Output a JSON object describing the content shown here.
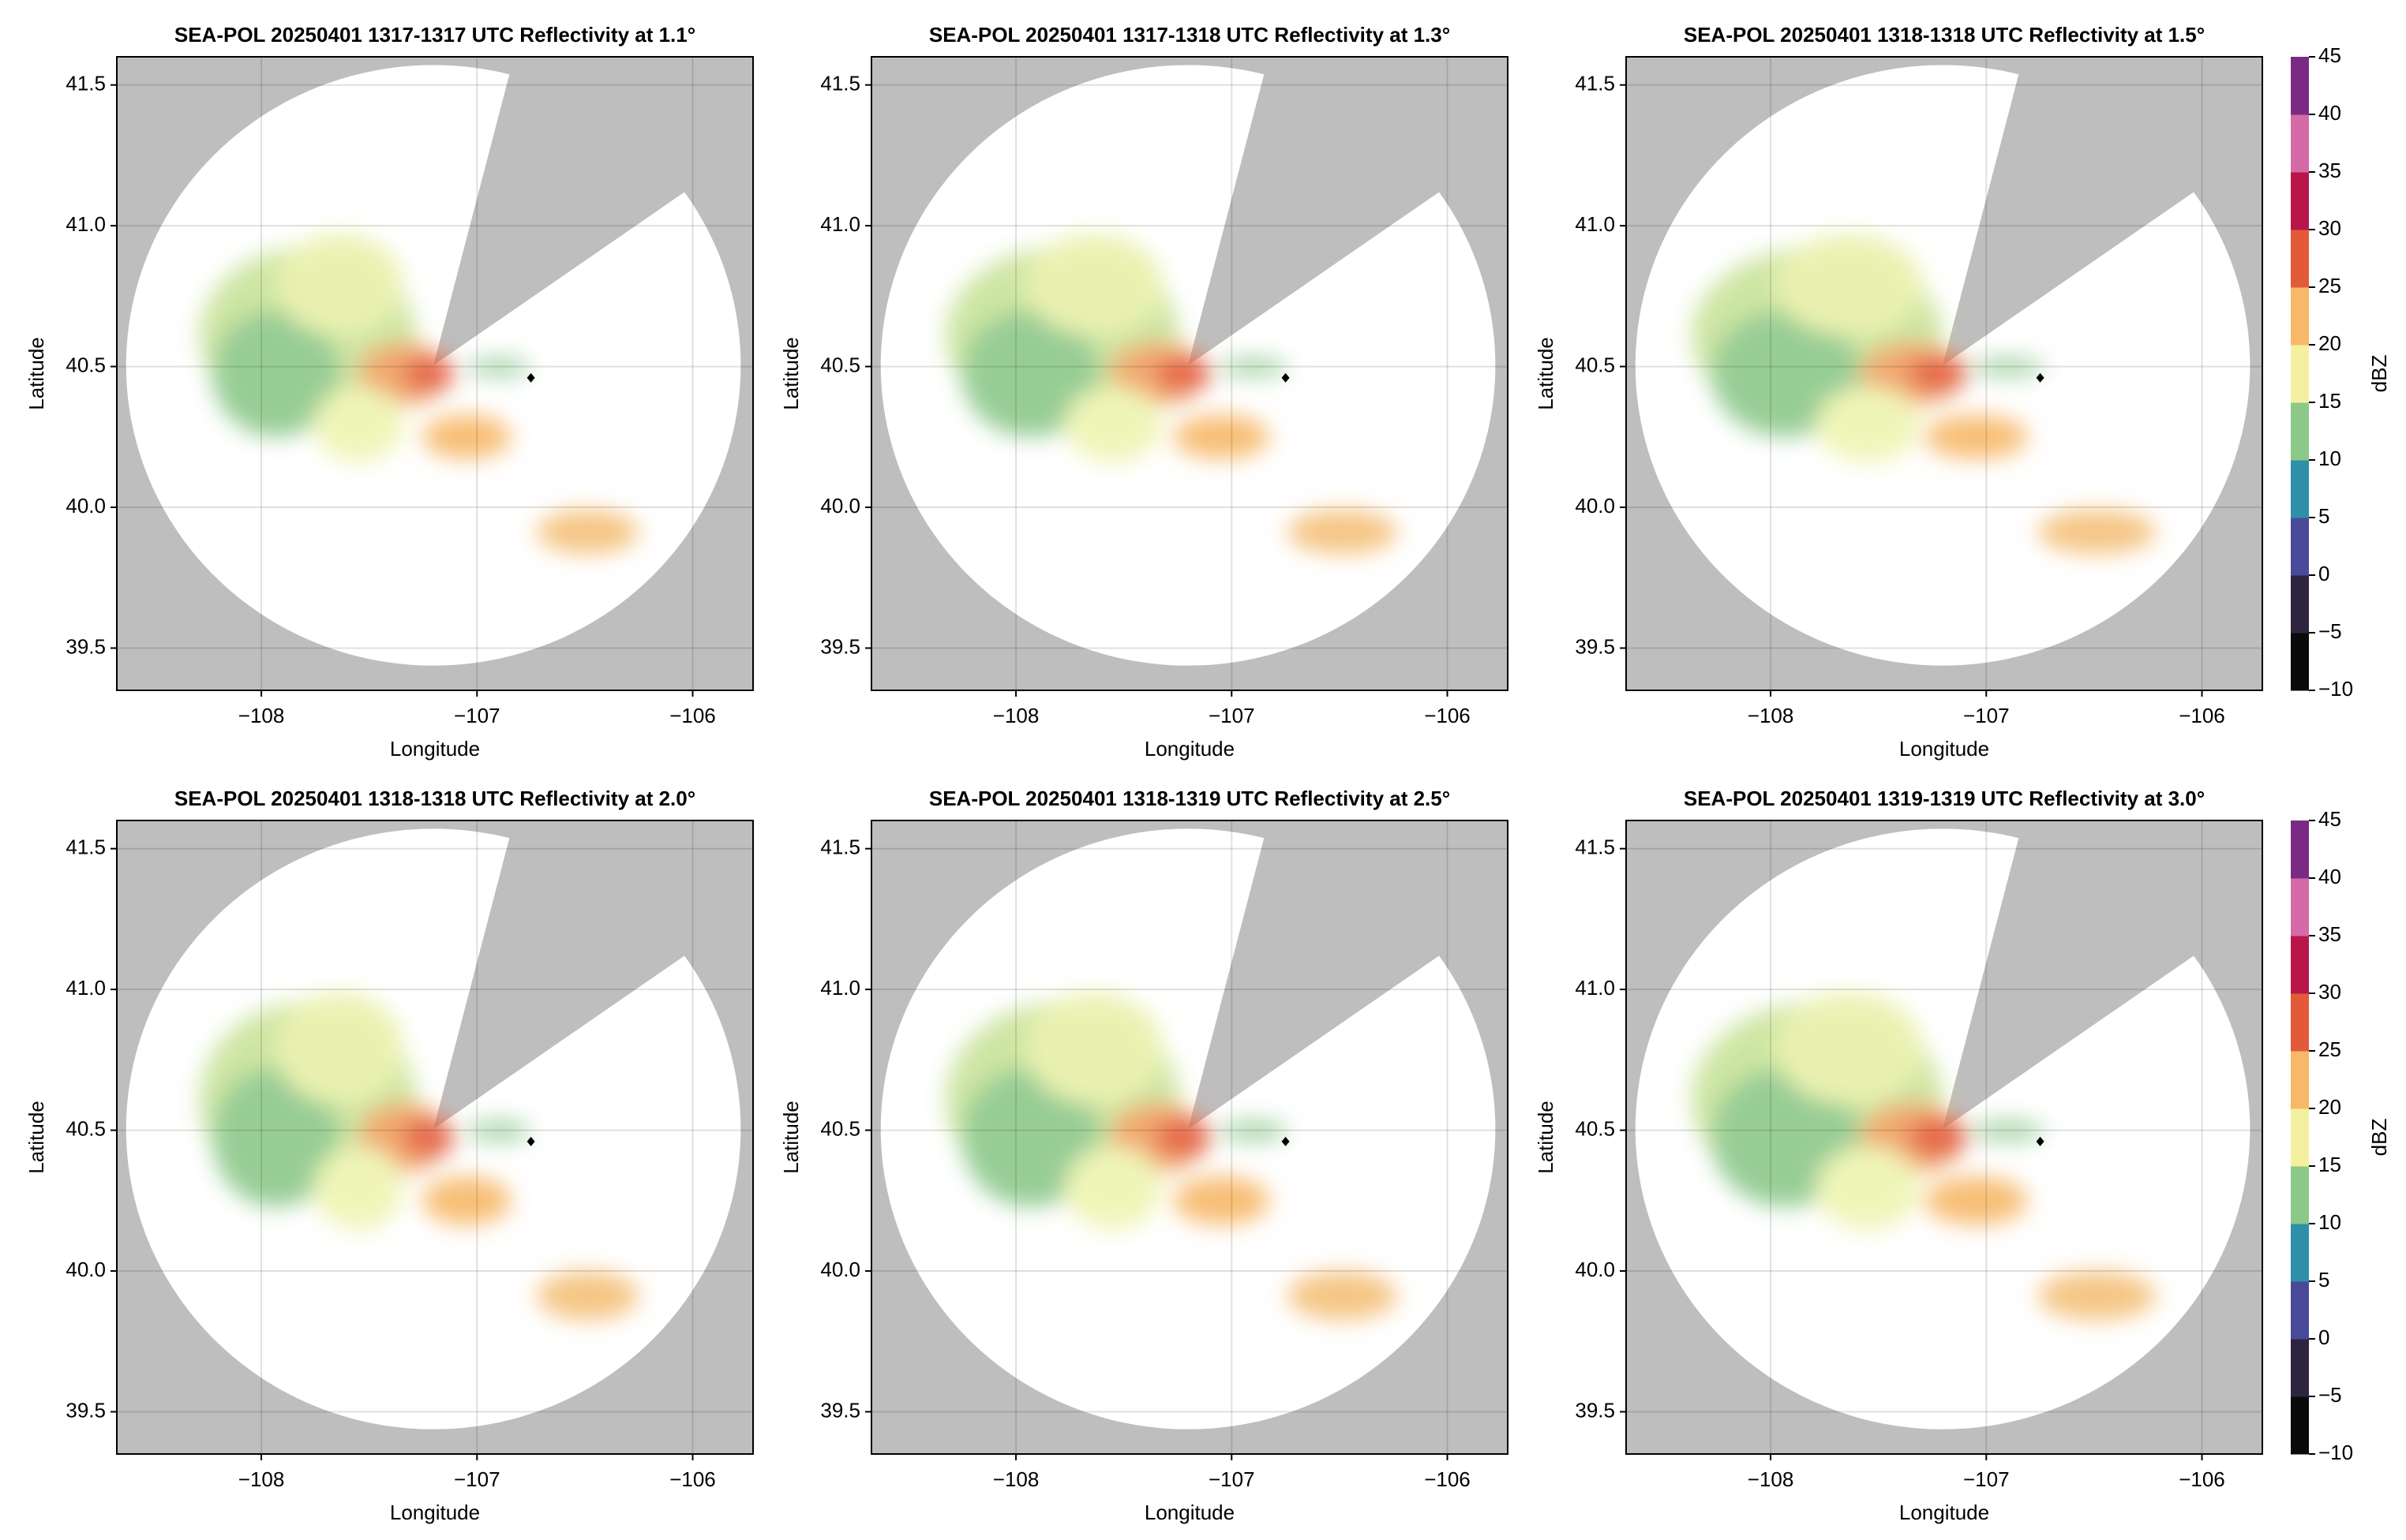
{
  "chart_data": [
    {
      "type": "radar",
      "title": "SEA-POL 20250401 1317-1317 UTC Reflectivity at 1.1°",
      "xlabel": "Longitude",
      "ylabel": "Latitude",
      "xlim": [
        -108.67,
        -105.72
      ],
      "ylim": [
        39.35,
        41.6
      ],
      "xticks": [
        {
          "value": -108,
          "label": "−108"
        },
        {
          "value": -107,
          "label": "−107"
        },
        {
          "value": -106,
          "label": "−106"
        }
      ],
      "yticks": [
        39.5,
        {
          "value": 40,
          "label": "40.0"
        },
        40.5,
        {
          "value": 41,
          "label": "41.0"
        },
        41.5
      ],
      "grid": true,
      "marker_x": -106.75,
      "marker_y": 40.46
    },
    {
      "type": "radar",
      "title": "SEA-POL 20250401 1317-1318 UTC Reflectivity at 1.3°",
      "xlabel": "Longitude",
      "ylabel": "Latitude",
      "xlim": [
        -108.67,
        -105.72
      ],
      "ylim": [
        39.35,
        41.6
      ],
      "xticks": [
        {
          "value": -108,
          "label": "−108"
        },
        {
          "value": -107,
          "label": "−107"
        },
        {
          "value": -106,
          "label": "−106"
        }
      ],
      "yticks": [
        39.5,
        {
          "value": 40,
          "label": "40.0"
        },
        40.5,
        {
          "value": 41,
          "label": "41.0"
        },
        41.5
      ],
      "grid": true,
      "marker_x": -106.75,
      "marker_y": 40.46
    },
    {
      "type": "radar",
      "title": "SEA-POL 20250401 1318-1318 UTC Reflectivity at 1.5°",
      "xlabel": "Longitude",
      "ylabel": "Latitude",
      "xlim": [
        -108.67,
        -105.72
      ],
      "ylim": [
        39.35,
        41.6
      ],
      "xticks": [
        {
          "value": -108,
          "label": "−108"
        },
        {
          "value": -107,
          "label": "−107"
        },
        {
          "value": -106,
          "label": "−106"
        }
      ],
      "yticks": [
        39.5,
        {
          "value": 40,
          "label": "40.0"
        },
        40.5,
        {
          "value": 41,
          "label": "41.0"
        },
        41.5
      ],
      "grid": true,
      "marker_x": -106.75,
      "marker_y": 40.46,
      "colorbar": {
        "label": "dBZ",
        "lim": [
          -10,
          45
        ],
        "ticks": [
          {
            "value": -10,
            "label": "−10"
          },
          {
            "value": -5,
            "label": "−5"
          },
          0,
          5,
          10,
          15,
          20,
          25,
          30,
          35,
          40,
          45
        ],
        "colors": [
          "#0a0a0a",
          "#2e2440",
          "#4a4a9a",
          "#2f8fa8",
          "#8cc88a",
          "#f4f0a0",
          "#f7b868",
          "#e35a3a",
          "#b8164a",
          "#d46aa6",
          "#7a2a84"
        ]
      }
    },
    {
      "type": "radar",
      "title": "SEA-POL 20250401 1318-1318 UTC Reflectivity at 2.0°",
      "xlabel": "Longitude",
      "ylabel": "Latitude",
      "xlim": [
        -108.67,
        -105.72
      ],
      "ylim": [
        39.35,
        41.6
      ],
      "xticks": [
        {
          "value": -108,
          "label": "−108"
        },
        {
          "value": -107,
          "label": "−107"
        },
        {
          "value": -106,
          "label": "−106"
        }
      ],
      "yticks": [
        39.5,
        {
          "value": 40,
          "label": "40.0"
        },
        40.5,
        {
          "value": 41,
          "label": "41.0"
        },
        41.5
      ],
      "grid": true,
      "marker_x": -106.75,
      "marker_y": 40.46
    },
    {
      "type": "radar",
      "title": "SEA-POL 20250401 1318-1319 UTC Reflectivity at 2.5°",
      "xlabel": "Longitude",
      "ylabel": "Latitude",
      "xlim": [
        -108.67,
        -105.72
      ],
      "ylim": [
        39.35,
        41.6
      ],
      "xticks": [
        {
          "value": -108,
          "label": "−108"
        },
        {
          "value": -107,
          "label": "−107"
        },
        {
          "value": -106,
          "label": "−106"
        }
      ],
      "yticks": [
        39.5,
        {
          "value": 40,
          "label": "40.0"
        },
        40.5,
        {
          "value": 41,
          "label": "41.0"
        },
        41.5
      ],
      "grid": true,
      "marker_x": -106.75,
      "marker_y": 40.46
    },
    {
      "type": "radar",
      "title": "SEA-POL 20250401 1319-1319 UTC Reflectivity at 3.0°",
      "xlabel": "Longitude",
      "ylabel": "Latitude",
      "xlim": [
        -108.67,
        -105.72
      ],
      "ylim": [
        39.35,
        41.6
      ],
      "xticks": [
        {
          "value": -108,
          "label": "−108"
        },
        {
          "value": -107,
          "label": "−107"
        },
        {
          "value": -106,
          "label": "−106"
        }
      ],
      "yticks": [
        39.5,
        {
          "value": 40,
          "label": "40.0"
        },
        40.5,
        {
          "value": 41,
          "label": "41.0"
        },
        41.5
      ],
      "grid": true,
      "marker_x": -106.75,
      "marker_y": 40.46,
      "colorbar": {
        "label": "dBZ",
        "lim": [
          -10,
          45
        ],
        "ticks": [
          {
            "value": -10,
            "label": "−10"
          },
          {
            "value": -5,
            "label": "−5"
          },
          0,
          5,
          10,
          15,
          20,
          25,
          30,
          35,
          40,
          45
        ],
        "colors": [
          "#0a0a0a",
          "#2e2440",
          "#4a4a9a",
          "#2f8fa8",
          "#8cc88a",
          "#f4f0a0",
          "#f7b868",
          "#e35a3a",
          "#b8164a",
          "#d46aa6",
          "#7a2a84"
        ]
      }
    }
  ]
}
